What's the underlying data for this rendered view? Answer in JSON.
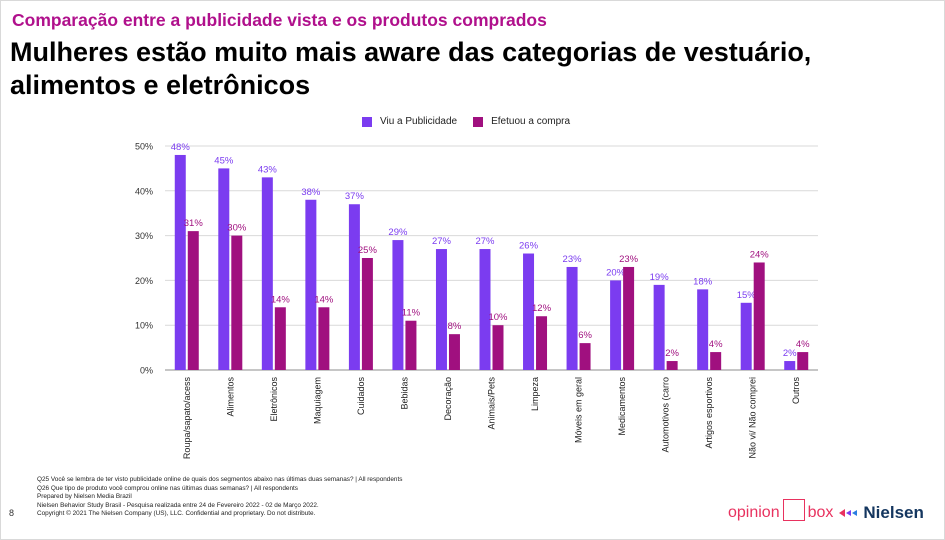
{
  "header": {
    "kicker": "Comparação entre a publicidade vista e os produtos comprados",
    "title_line1": "Mulheres estão muito mais aware das categorias de vestuário,",
    "title_line2": "alimentos e eletrônicos"
  },
  "colors": {
    "kicker": "#b0108c",
    "series_viu": "#7b3cf0",
    "series_efetuou": "#a0107f",
    "label_viu": "#7b3cf0",
    "label_efetuou": "#a0107f",
    "ob_logo": "#e8325f",
    "nielsen_logo": "#14365f"
  },
  "chart_data": {
    "type": "bar",
    "categories": [
      "Roupa/sapato/acess",
      "Alimentos",
      "Eletrônicos",
      "Maquiagem",
      "Cuidados",
      "Bebidas",
      "Decoração",
      "Animais/Pets",
      "Limpeza",
      "Móveis em geral",
      "Medicamentos",
      "Automotivos (carro",
      "Artigos esportivos",
      "Não vi/ Não comprei",
      "Outros"
    ],
    "series": [
      {
        "name": "Viu a Publicidade",
        "values": [
          48,
          45,
          43,
          38,
          37,
          29,
          27,
          27,
          26,
          23,
          20,
          19,
          18,
          15,
          2
        ]
      },
      {
        "name": "Efetuou a compra",
        "values": [
          31,
          30,
          14,
          14,
          25,
          11,
          8,
          10,
          12,
          6,
          23,
          2,
          4,
          24,
          4
        ]
      }
    ],
    "ylim": [
      0,
      50
    ],
    "yticks": [
      "0%",
      "10%",
      "20%",
      "30%",
      "40%",
      "50%"
    ],
    "value_suffix": "%",
    "legend_position": "top",
    "grid": true
  },
  "notes": [
    "Q25 Você se lembra de ter visto publicidade online de quais dos segmentos abaixo nas últimas duas semanas? | All respondents",
    "Q26 Que tipo de produto você comprou online nas últimas duas semanas? | All respondents",
    "Prepared by Nielsen Media Brazil",
    "Nielsen Behavior Study Brasil - Pesquisa realizada entre  24 de Fevereiro 2022 - 02 de Março 2022.",
    "Copyright © 2021 The Nielsen Company (US), LLC. Confidential and proprietary. Do not distribute."
  ],
  "page_number": "8",
  "logos": {
    "opinionbox_left": "opinion",
    "opinionbox_right": "box",
    "nielsen": "Nielsen"
  }
}
